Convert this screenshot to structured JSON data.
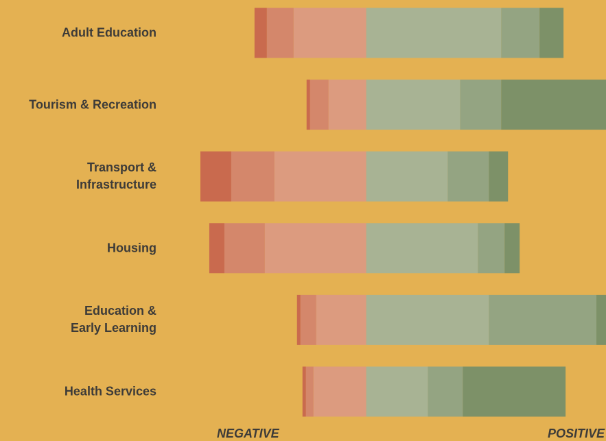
{
  "chart_data": {
    "type": "diverging-bar",
    "categories": [
      "Adult Education",
      "Tourism & Recreation",
      "Transport &\nInfrastructure",
      "Housing",
      "Education &\nEarly Learning",
      "Health Services"
    ],
    "series": [
      {
        "color": "#dc9b7f",
        "values": [
          -21.2,
          -11,
          -26.8,
          -29.6,
          -14.6,
          -15.4
        ]
      },
      {
        "color": "#d4876b",
        "values": [
          -7.8,
          -5.4,
          -12.6,
          -11.8,
          -4.6,
          -2.2
        ]
      },
      {
        "color": "#c96a4e",
        "values": [
          -3.6,
          -1,
          -9,
          -4.4,
          -1,
          -1
        ]
      },
      {
        "color": "#a8b394",
        "values": [
          39.4,
          27.4,
          23.8,
          32.6,
          35.8,
          18
        ]
      },
      {
        "color": "#94a482",
        "values": [
          11.2,
          12,
          12,
          7.8,
          31.4,
          10.2
        ]
      },
      {
        "color": "#7d9168",
        "values": [
          7,
          35,
          5.6,
          4.4,
          10,
          30
        ]
      }
    ],
    "xlim": [
      -50,
      70
    ],
    "annotations": [
      "NEGATIVE",
      "POSITIVE"
    ]
  }
}
